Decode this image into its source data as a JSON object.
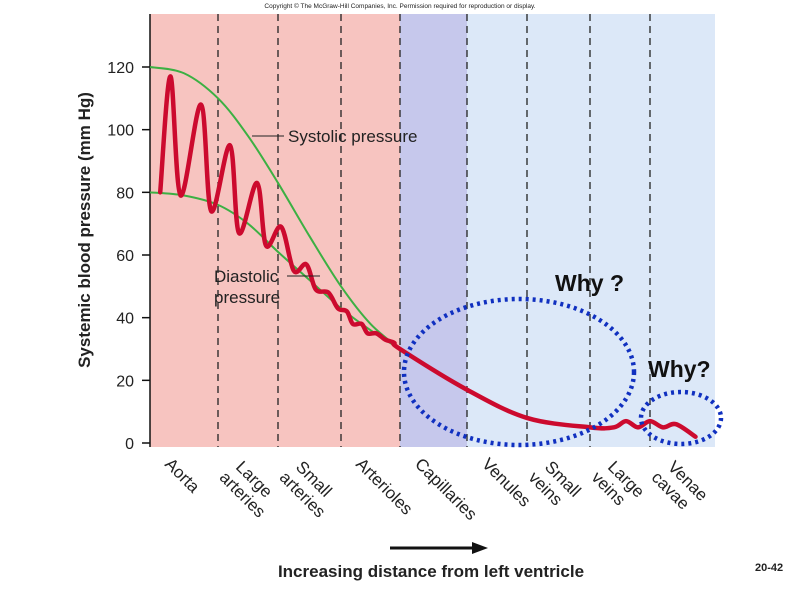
{
  "copyright": "Copyright © The McGraw-Hill Companies, Inc. Permission required for reproduction or display.",
  "slide_number": "20-42",
  "chart_data": {
    "type": "line",
    "ylabel": "Systemic blood pressure (mm Hg)",
    "xlabel": "Increasing distance from left ventricle",
    "ylim": [
      0,
      135
    ],
    "yticks": [
      0,
      20,
      40,
      60,
      80,
      100,
      120
    ],
    "regions": [
      {
        "label": "Aorta",
        "color": "#f7c4c0"
      },
      {
        "label": "Large arteries",
        "color": "#f7c4c0"
      },
      {
        "label": "Small arteries",
        "color": "#f7c4c0"
      },
      {
        "label": "Arterioles",
        "color": "#f7c4c0"
      },
      {
        "label": "Capillaries",
        "color": "#c6c8ec"
      },
      {
        "label": "Venules",
        "color": "#dce8f8"
      },
      {
        "label": "Small veins",
        "color": "#dce8f8"
      },
      {
        "label": "Large veins",
        "color": "#dce8f8"
      },
      {
        "label": "Venae cavae",
        "color": "#dce8f8"
      }
    ],
    "series": [
      {
        "name": "Systolic pressure",
        "color": "#3cb043",
        "x": [
          0,
          0.5,
          1,
          1.5,
          2,
          2.5,
          3,
          3.5,
          4
        ],
        "values": [
          120,
          118,
          110,
          98,
          83,
          66,
          50,
          38,
          30
        ]
      },
      {
        "name": "Diastolic pressure",
        "color": "#3cb043",
        "x": [
          0,
          0.5,
          1,
          1.5,
          2,
          2.5,
          3,
          3.5,
          4,
          5,
          6,
          7
        ],
        "values": [
          80,
          79,
          76,
          70,
          61,
          52,
          43,
          36,
          30,
          17,
          8,
          5
        ]
      },
      {
        "name": "",
        "color": "#cc0a2e",
        "x": [
          0.15,
          0.3,
          0.45,
          0.75,
          0.9,
          1.2,
          1.35,
          1.65,
          1.8,
          2.05,
          2.25,
          2.45,
          2.6,
          2.8,
          2.95,
          3.1,
          3.2,
          3.35,
          3.45,
          3.6,
          3.75,
          3.9,
          4,
          5,
          6,
          7,
          7.4,
          7.6,
          7.8,
          8,
          8.2,
          8.4,
          8.7
        ],
        "values": [
          80,
          117,
          79,
          108,
          74,
          95,
          67,
          83,
          63,
          69,
          55,
          57,
          49,
          48,
          43,
          42,
          38,
          38,
          35,
          35,
          33,
          32,
          30,
          17,
          8,
          5,
          5,
          7,
          5,
          7,
          5,
          6,
          2
        ]
      }
    ],
    "annotations": [
      "Why ?",
      "Why?"
    ],
    "grid": false
  },
  "colors": {
    "circle": "#1030c0",
    "pulse": "#cc0a2e",
    "envelope": "#3cb043"
  }
}
